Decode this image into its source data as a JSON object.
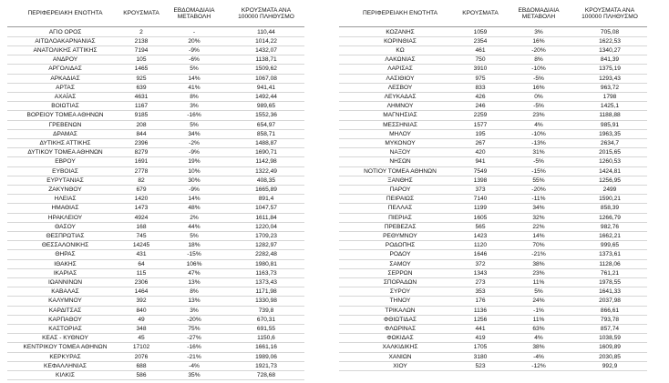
{
  "table": {
    "header": [
      "ΠΕΡΙΦΕΡΕΙΑΚΗ ΕΝΟΤΗΤΑ",
      "ΚΡΟΥΣΜΑΤΑ",
      "ΕΒΔΟΜΑΔΙΑΙΑ ΜΕΤΑΒΟΛΗ",
      "ΚΡΟΥΣΜΑΤΑ ΑΝΑ 100000 ΠΛΗΘΥΣΜΟ"
    ],
    "left": [
      [
        "ΑΓΙΟ ΟΡΟΣ",
        "2",
        "-",
        "110,44"
      ],
      [
        "ΑΙΤΩΛΟΑΚΑΡΝΑΝΙΑΣ",
        "2138",
        "20%",
        "1014,22"
      ],
      [
        "ΑΝΑΤΟΛΙΚΗΣ ΑΤΤΙΚΗΣ",
        "7194",
        "-9%",
        "1432,07"
      ],
      [
        "ΑΝΔΡΟΥ",
        "105",
        "-6%",
        "1138,71"
      ],
      [
        "ΑΡΓΟΛΙΔΑΣ",
        "1465",
        "5%",
        "1509,62"
      ],
      [
        "ΑΡΚΑΔΙΑΣ",
        "925",
        "14%",
        "1067,08"
      ],
      [
        "ΑΡΤΑΣ",
        "639",
        "41%",
        "941,41"
      ],
      [
        "ΑΧΑΪΑΣ",
        "4631",
        "8%",
        "1492,44"
      ],
      [
        "ΒΟΙΩΤΙΑΣ",
        "1167",
        "3%",
        "989,65"
      ],
      [
        "ΒΟΡΕΙΟΥ ΤΟΜΕΑ ΑΘΗΝΩΝ",
        "9185",
        "-16%",
        "1552,36"
      ],
      [
        "ΓΡΕΒΕΝΩΝ",
        "208",
        "5%",
        "654,97"
      ],
      [
        "ΔΡΑΜΑΣ",
        "844",
        "34%",
        "858,71"
      ],
      [
        "ΔΥΤΙΚΗΣ ΑΤΤΙΚΗΣ",
        "2396",
        "-2%",
        "1488,87"
      ],
      [
        "ΔΥΤΙΚΟΥ ΤΟΜΕΑ ΑΘΗΝΩΝ",
        "8279",
        "-9%",
        "1690,71"
      ],
      [
        "ΕΒΡΟΥ",
        "1691",
        "19%",
        "1142,98"
      ],
      [
        "ΕΥΒΟΙΑΣ",
        "2778",
        "10%",
        "1322,49"
      ],
      [
        "ΕΥΡΥΤΑΝΙΑΣ",
        "82",
        "30%",
        "408,35"
      ],
      [
        "ΖΑΚΥΝΘΟΥ",
        "679",
        "-9%",
        "1665,89"
      ],
      [
        "ΗΛΕΙΑΣ",
        "1420",
        "14%",
        "891,4"
      ],
      [
        "ΗΜΑΘΙΑΣ",
        "1473",
        "48%",
        "1047,57"
      ],
      [
        "ΗΡΑΚΛΕΙΟΥ",
        "4924",
        "2%",
        "1611,84"
      ],
      [
        "ΘΑΣΟΥ",
        "168",
        "44%",
        "1220,04"
      ],
      [
        "ΘΕΣΠΡΩΤΙΑΣ",
        "745",
        "5%",
        "1709,23"
      ],
      [
        "ΘΕΣΣΑΛΟΝΙΚΗΣ",
        "14245",
        "18%",
        "1282,97"
      ],
      [
        "ΘΗΡΑΣ",
        "431",
        "-15%",
        "2282,48"
      ],
      [
        "ΙΘΑΚΗΣ",
        "64",
        "106%",
        "1980,81"
      ],
      [
        "ΙΚΑΡΙΑΣ",
        "115",
        "47%",
        "1163,73"
      ],
      [
        "ΙΩΑΝΝΙΝΩΝ",
        "2306",
        "13%",
        "1373,43"
      ],
      [
        "ΚΑΒΑΛΑΣ",
        "1464",
        "8%",
        "1171,98"
      ],
      [
        "ΚΑΛΥΜΝΟΥ",
        "392",
        "13%",
        "1330,98"
      ],
      [
        "ΚΑΡΔΙΤΣΑΣ",
        "840",
        "3%",
        "739,8"
      ],
      [
        "ΚΑΡΠΑΘΟΥ",
        "49",
        "-20%",
        "670,31"
      ],
      [
        "ΚΑΣΤΟΡΙΑΣ",
        "348",
        "75%",
        "691,55"
      ],
      [
        "ΚΕΑΣ - ΚΥΘΝΟΥ",
        "45",
        "-27%",
        "1150,6"
      ],
      [
        "ΚΕΝΤΡΙΚΟΥ ΤΟΜΕΑ ΑΘΗΝΩΝ",
        "17102",
        "-16%",
        "1661,16"
      ],
      [
        "ΚΕΡΚΥΡΑΣ",
        "2076",
        "-21%",
        "1989,06"
      ],
      [
        "ΚΕΦΑΛΛΗΝΙΑΣ",
        "688",
        "-4%",
        "1921,73"
      ],
      [
        "ΚΙΛΚΙΣ",
        "586",
        "35%",
        "728,68"
      ]
    ],
    "right": [
      [
        "ΚΟΖΑΝΗΣ",
        "1059",
        "3%",
        "705,08"
      ],
      [
        "ΚΟΡΙΝΘΙΑΣ",
        "2354",
        "16%",
        "1622,53"
      ],
      [
        "ΚΩ",
        "461",
        "-20%",
        "1340,27"
      ],
      [
        "ΛΑΚΩΝΙΑΣ",
        "750",
        "8%",
        "841,39"
      ],
      [
        "ΛΑΡΙΣΑΣ",
        "3910",
        "-10%",
        "1375,19"
      ],
      [
        "ΛΑΣΙΘΙΟΥ",
        "975",
        "-5%",
        "1293,43"
      ],
      [
        "ΛΕΣΒΟΥ",
        "833",
        "16%",
        "963,72"
      ],
      [
        "ΛΕΥΚΑΔΑΣ",
        "426",
        "0%",
        "1798"
      ],
      [
        "ΛΗΜΝΟΥ",
        "246",
        "-5%",
        "1425,1"
      ],
      [
        "ΜΑΓΝΗΣΙΑΣ",
        "2259",
        "23%",
        "1188,88"
      ],
      [
        "ΜΕΣΣΗΝΙΑΣ",
        "1577",
        "4%",
        "985,91"
      ],
      [
        "ΜΗΛΟΥ",
        "195",
        "-10%",
        "1963,35"
      ],
      [
        "ΜΥΚΟΝΟΥ",
        "267",
        "-13%",
        "2634,7"
      ],
      [
        "ΝΑΞΟΥ",
        "420",
        "31%",
        "2015,65"
      ],
      [
        "ΝΗΣΩΝ",
        "941",
        "-5%",
        "1260,53"
      ],
      [
        "ΝΟΤΙΟΥ ΤΟΜΕΑ ΑΘΗΝΩΝ",
        "7549",
        "-15%",
        "1424,81"
      ],
      [
        "ΞΑΝΘΗΣ",
        "1398",
        "55%",
        "1256,95"
      ],
      [
        "ΠΑΡΟΥ",
        "373",
        "-20%",
        "2499"
      ],
      [
        "ΠΕΙΡΑΙΩΣ",
        "7140",
        "-11%",
        "1590,21"
      ],
      [
        "ΠΕΛΛΑΣ",
        "1199",
        "34%",
        "858,39"
      ],
      [
        "ΠΙΕΡΙΑΣ",
        "1605",
        "32%",
        "1266,79"
      ],
      [
        "ΠΡΕΒΕΖΑΣ",
        "565",
        "22%",
        "982,76"
      ],
      [
        "ΡΕΘΥΜΝΟΥ",
        "1423",
        "14%",
        "1662,21"
      ],
      [
        "ΡΟΔΟΠΗΣ",
        "1120",
        "70%",
        "999,65"
      ],
      [
        "ΡΟΔΟΥ",
        "1646",
        "-21%",
        "1373,61"
      ],
      [
        "ΣΑΜΟΥ",
        "372",
        "38%",
        "1128,06"
      ],
      [
        "ΣΕΡΡΩΝ",
        "1343",
        "23%",
        "761,21"
      ],
      [
        "ΣΠΟΡΑΔΩΝ",
        "273",
        "11%",
        "1978,55"
      ],
      [
        "ΣΥΡΟΥ",
        "353",
        "5%",
        "1641,33"
      ],
      [
        "ΤΗΝΟΥ",
        "176",
        "24%",
        "2037,98"
      ],
      [
        "ΤΡΙΚΑΛΩΝ",
        "1136",
        "-1%",
        "866,61"
      ],
      [
        "ΦΘΙΩΤΙΔΑΣ",
        "1256",
        "11%",
        "793,78"
      ],
      [
        "ΦΛΩΡΙΝΑΣ",
        "441",
        "63%",
        "857,74"
      ],
      [
        "ΦΩΚΙΔΑΣ",
        "419",
        "4%",
        "1038,59"
      ],
      [
        "ΧΑΛΚΙΔΙΚΗΣ",
        "1705",
        "38%",
        "1609,89"
      ],
      [
        "ΧΑΝΙΩΝ",
        "3180",
        "-4%",
        "2030,85"
      ],
      [
        "ΧΙΟΥ",
        "523",
        "-12%",
        "992,9"
      ]
    ]
  }
}
